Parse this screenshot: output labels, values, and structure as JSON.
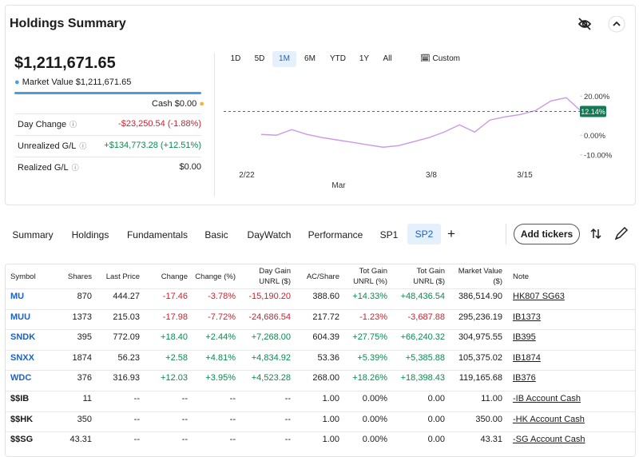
{
  "header": {
    "title": "Holdings Summary"
  },
  "summary": {
    "total": "$1,211,671.65",
    "market_value_label": "Market Value",
    "market_value": "$1,211,671.65",
    "cash_label": "Cash",
    "cash": "$0.00",
    "rows": [
      {
        "label": "Day Change",
        "value": "-$23,250.54 (-1.88%)"
      },
      {
        "label": "Unrealized G/L",
        "value": "+$134,773.28 (+12.51%)"
      },
      {
        "label": "Realized G/L",
        "value": "$0.00"
      }
    ]
  },
  "ranges": [
    "1D",
    "5D",
    "1M",
    "6M",
    "YTD",
    "1Y",
    "All",
    "Custom"
  ],
  "selected_range": "1M",
  "chart": {
    "type": "line",
    "color": "#c99ae6",
    "x_labels": [
      "2/22",
      "Mar",
      "3/8",
      "3/15"
    ],
    "values": [
      0.41,
      0,
      2.86,
      0.41,
      -1.22,
      -2.45,
      -3.67,
      -4.9,
      -6.12,
      -5.31,
      -3.27,
      -1.22,
      1.63,
      5.31,
      1.63,
      7.76,
      9.39,
      10.61,
      12.65,
      17.55,
      19.18,
      12.14
    ],
    "ylim": [
      -15,
      25
    ],
    "yticks": [
      {
        "value": 20,
        "label": "20.00%"
      },
      {
        "value": 0,
        "label": "0.00%"
      },
      {
        "value": -10,
        "label": "-10.00%"
      }
    ],
    "current": {
      "value": 12.14,
      "label": "12.14%"
    }
  },
  "tabs": [
    "Summary",
    "Holdings",
    "Fundamentals",
    "Basic",
    "DayWatch",
    "Performance",
    "SP1",
    "SP2"
  ],
  "selected_tab": "SP2",
  "add_button": "Add tickers",
  "table": {
    "columns": [
      [
        "Symbol"
      ],
      [
        "Shares"
      ],
      [
        "Last Price"
      ],
      [
        "Change"
      ],
      [
        "Change (%)"
      ],
      [
        "Day Gain",
        "UNRL ($)"
      ],
      [
        "AC/Share"
      ],
      [
        "Tot Gain",
        "UNRL (%)"
      ],
      [
        "Tot Gain",
        "UNRL ($)"
      ],
      [
        "Market Value",
        "($)"
      ],
      [
        "Note"
      ]
    ],
    "rows": [
      [
        "MU",
        "870",
        "444.27",
        "-17.46",
        "-3.78%",
        "-15,190.20",
        "388.60",
        "+14.33%",
        "+48,436.54",
        "386,514.90",
        "HK807 SG63"
      ],
      [
        "MUU",
        "1373",
        "215.03",
        "-17.98",
        "-7.72%",
        "-24,686.54",
        "217.72",
        "-1.23%",
        "-3,687.88",
        "295,236.19",
        "IB1373"
      ],
      [
        "SNDK",
        "395",
        "772.09",
        "+18.40",
        "+2.44%",
        "+7,268.00",
        "604.39",
        "+27.75%",
        "+66,240.32",
        "304,975.55",
        "IB395"
      ],
      [
        "SNXX",
        "1874",
        "56.23",
        "+2.58",
        "+4.81%",
        "+4,834.92",
        "53.36",
        "+5.39%",
        "+5,385.88",
        "105,375.02",
        "IB1874"
      ],
      [
        "WDC",
        "376",
        "316.93",
        "+12.03",
        "+3.95%",
        "+4,523.28",
        "268.00",
        "+18.26%",
        "+18,398.43",
        "119,165.68",
        "IB376"
      ],
      [
        "$$IB",
        "11",
        "--",
        "--",
        "--",
        "--",
        "1.00",
        "0.00%",
        "0.00",
        "11.00",
        "-IB Account Cash"
      ],
      [
        "$$HK",
        "350",
        "--",
        "--",
        "--",
        "--",
        "1.00",
        "0.00%",
        "0.00",
        "350.00",
        "-HK Account Cash"
      ],
      [
        "$$SG",
        "43.31",
        "--",
        "--",
        "--",
        "--",
        "1.00",
        "0.00%",
        "0.00",
        "43.31",
        "-SG Account Cash"
      ]
    ]
  }
}
